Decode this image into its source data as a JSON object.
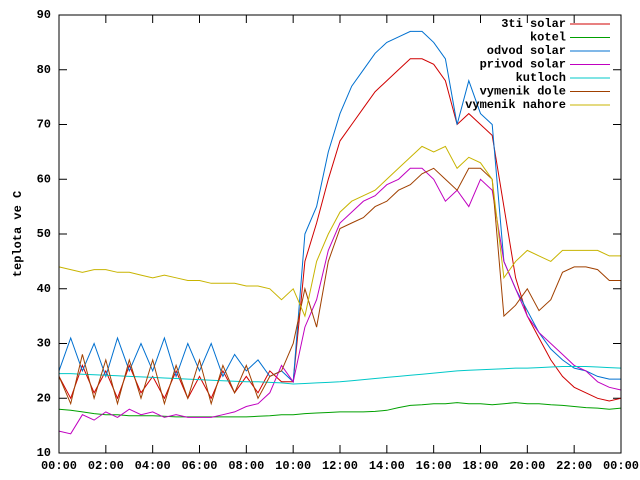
{
  "chart_data": {
    "type": "line",
    "ylabel": "teplota ve C",
    "x": [
      0,
      0.5,
      1,
      1.5,
      2,
      2.5,
      3,
      3.5,
      4,
      4.5,
      5,
      5.5,
      6,
      6.5,
      7,
      7.5,
      8,
      8.5,
      9,
      9.5,
      10,
      10.5,
      11,
      11.5,
      12,
      12.5,
      13,
      13.5,
      14,
      14.5,
      15,
      15.5,
      16,
      16.5,
      17,
      17.5,
      18,
      18.5,
      19,
      19.5,
      20,
      20.5,
      21,
      21.5,
      22,
      22.5,
      23,
      23.5,
      24
    ],
    "xlim": [
      0,
      24
    ],
    "xticks": [
      {
        "value": 0,
        "label": "00:00"
      },
      {
        "value": 2,
        "label": "02:00"
      },
      {
        "value": 4,
        "label": "04:00"
      },
      {
        "value": 6,
        "label": "06:00"
      },
      {
        "value": 8,
        "label": "08:00"
      },
      {
        "value": 10,
        "label": "10:00"
      },
      {
        "value": 12,
        "label": "12:00"
      },
      {
        "value": 14,
        "label": "14:00"
      },
      {
        "value": 16,
        "label": "16:00"
      },
      {
        "value": 18,
        "label": "18:00"
      },
      {
        "value": 20,
        "label": "20:00"
      },
      {
        "value": 22,
        "label": "22:00"
      },
      {
        "value": 24,
        "label": "00:00"
      }
    ],
    "ylim": [
      10,
      90
    ],
    "yticks": [
      10,
      20,
      30,
      40,
      50,
      60,
      70,
      80,
      90
    ],
    "legend": "top-right",
    "series": [
      {
        "name": "3ti solar",
        "color": "#d00000",
        "values": [
          24,
          20,
          26,
          21,
          25,
          20,
          26,
          21,
          24,
          20,
          25,
          20,
          24,
          20,
          25,
          21,
          24,
          21,
          25,
          23,
          23,
          45,
          52,
          60,
          67,
          70,
          73,
          76,
          78,
          80,
          82,
          82,
          81,
          78,
          70,
          72,
          70,
          68,
          55,
          42,
          35,
          31,
          27,
          24,
          22,
          21,
          20,
          19.5,
          20
        ]
      },
      {
        "name": "kotel",
        "color": "#00a000",
        "values": [
          18,
          17.8,
          17.5,
          17.2,
          17,
          17,
          16.8,
          16.8,
          16.8,
          16.7,
          16.6,
          16.6,
          16.6,
          16.6,
          16.6,
          16.6,
          16.6,
          16.7,
          16.8,
          17,
          17,
          17.2,
          17.3,
          17.4,
          17.5,
          17.5,
          17.5,
          17.6,
          17.8,
          18.3,
          18.7,
          18.8,
          19,
          19,
          19.2,
          19,
          19,
          18.8,
          19,
          19.2,
          19,
          19,
          18.8,
          18.7,
          18.5,
          18.3,
          18.2,
          18,
          18.2
        ]
      },
      {
        "name": "odvod solar",
        "color": "#0070d0",
        "values": [
          25,
          31,
          25,
          30,
          24,
          31,
          25,
          30,
          25,
          31,
          24,
          30,
          25,
          30,
          24,
          28,
          25,
          27,
          24,
          25,
          23,
          50,
          55,
          65,
          72,
          77,
          80,
          83,
          85,
          86,
          87,
          87,
          85,
          82,
          70,
          78,
          72,
          70,
          45,
          40,
          36,
          32,
          29,
          27,
          25.5,
          25,
          24,
          23.5,
          23.5
        ]
      },
      {
        "name": "privod solar",
        "color": "#c000c0",
        "values": [
          14,
          13.5,
          17,
          16,
          17.5,
          16.5,
          18,
          17,
          17.5,
          16.5,
          17,
          16.5,
          16.5,
          16.5,
          17,
          17.5,
          18.5,
          19,
          21,
          26,
          23,
          33,
          38,
          47,
          52,
          54,
          56,
          57,
          59,
          60,
          62,
          62,
          60,
          56,
          58,
          55,
          60,
          58,
          45,
          40,
          35,
          32,
          30,
          28,
          26,
          25,
          23,
          22,
          21.5
        ]
      },
      {
        "name": "kutloch",
        "color": "#00c8c8",
        "values": [
          24.5,
          24.5,
          24.4,
          24.3,
          24.2,
          24.1,
          24,
          23.9,
          23.8,
          23.7,
          23.6,
          23.5,
          23.4,
          23.3,
          23.2,
          23.1,
          23,
          23,
          22.9,
          22.8,
          22.6,
          22.7,
          22.8,
          22.9,
          23,
          23.2,
          23.4,
          23.6,
          23.8,
          24,
          24.2,
          24.4,
          24.6,
          24.8,
          25,
          25.1,
          25.2,
          25.3,
          25.4,
          25.5,
          25.5,
          25.6,
          25.7,
          25.8,
          25.8,
          25.8,
          25.7,
          25.6,
          25.5
        ]
      },
      {
        "name": "vymenik dole",
        "color": "#a04000",
        "values": [
          24,
          19,
          28,
          20,
          27,
          19,
          27,
          20,
          27,
          19,
          26,
          20,
          27,
          19,
          26,
          21,
          26,
          20,
          24,
          25,
          30,
          40,
          33,
          45,
          51,
          52,
          53,
          55,
          56,
          58,
          59,
          61,
          62,
          60,
          58,
          62,
          62,
          60,
          35,
          37,
          40,
          36,
          38,
          43,
          44,
          44,
          43.5,
          41.5,
          41.5
        ]
      },
      {
        "name": "vymenik nahore",
        "color": "#c8b400",
        "values": [
          44,
          43.5,
          43,
          43.5,
          43.5,
          43,
          43,
          42.5,
          42,
          42.5,
          42,
          41.5,
          41.5,
          41,
          41,
          41,
          40.5,
          40.5,
          40,
          38,
          40,
          35,
          45,
          50,
          54,
          56,
          57,
          58,
          60,
          62,
          64,
          66,
          65,
          66,
          62,
          64,
          63,
          60,
          42,
          45,
          47,
          46,
          45,
          47,
          47,
          47,
          47,
          46,
          46
        ]
      }
    ]
  }
}
